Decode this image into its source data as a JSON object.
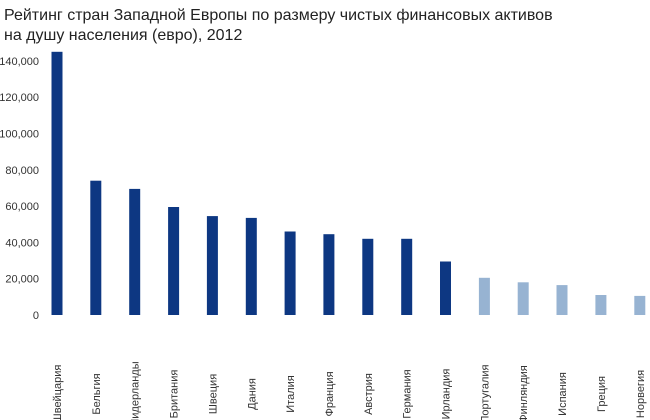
{
  "chart_data": {
    "type": "bar",
    "title_line1": "Рейтинг стран Западной Европы по размеру чистых финансовых активов",
    "title_line2": "на душу населения (евро), 2012",
    "xlabel": "",
    "ylabel": "",
    "ylim": [
      0,
      145000
    ],
    "yticks": [
      0,
      20000,
      40000,
      60000,
      80000,
      100000,
      120000,
      140000
    ],
    "ytick_labels": [
      "0",
      "20,000",
      "40,000",
      "60,000",
      "80,000",
      "100,000",
      "120,000",
      "140,000"
    ],
    "grid": false,
    "legend": "none",
    "categories": [
      "Швейцария",
      "Бельгия",
      "Нидерланды",
      "Британия",
      "Швеция",
      "Дания",
      "Италия",
      "Франция",
      "Австрия",
      "Германия",
      "Ирландия",
      "Португалия",
      "Финляндия",
      "Испания",
      "Греция",
      "Норвегия"
    ],
    "values": [
      145000,
      74000,
      69500,
      59500,
      54500,
      53500,
      46000,
      44500,
      42000,
      42000,
      29500,
      20500,
      18000,
      16500,
      11000,
      10500
    ],
    "colors": {
      "dark": "#0d3782",
      "light": "#97b3d2"
    },
    "bar_color_groups": [
      "dark",
      "dark",
      "dark",
      "dark",
      "dark",
      "dark",
      "dark",
      "dark",
      "dark",
      "dark",
      "dark",
      "light",
      "light",
      "light",
      "light",
      "light"
    ]
  }
}
